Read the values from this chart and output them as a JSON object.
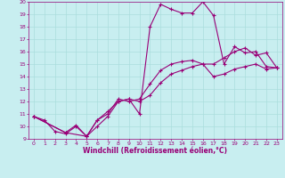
{
  "xlabel": "Windchill (Refroidissement éolien,°C)",
  "background_color": "#c8eef0",
  "grid_color": "#aadddd",
  "line_color": "#990077",
  "xlim": [
    -0.5,
    23.5
  ],
  "ylim": [
    9,
    20
  ],
  "xticks": [
    0,
    1,
    2,
    3,
    4,
    5,
    6,
    7,
    8,
    9,
    10,
    11,
    12,
    13,
    14,
    15,
    16,
    17,
    18,
    19,
    20,
    21,
    22,
    23
  ],
  "yticks": [
    9,
    10,
    11,
    12,
    13,
    14,
    15,
    16,
    17,
    18,
    19,
    20
  ],
  "line1_x": [
    0,
    1,
    2,
    3,
    4,
    5,
    6,
    7,
    8,
    9,
    10,
    11,
    12,
    13,
    14,
    15,
    16,
    17,
    18,
    19,
    20,
    21,
    22,
    23
  ],
  "line1_y": [
    10.8,
    10.5,
    9.6,
    9.4,
    10.0,
    9.2,
    10.0,
    10.8,
    12.0,
    12.2,
    11.0,
    18.0,
    19.8,
    19.4,
    19.1,
    19.1,
    20.0,
    18.9,
    15.0,
    16.4,
    15.9,
    16.0,
    14.8,
    14.7
  ],
  "line2_x": [
    0,
    3,
    4,
    5,
    6,
    7,
    8,
    9,
    10,
    11,
    12,
    13,
    14,
    15,
    16,
    17,
    18,
    19,
    20,
    21,
    22,
    23
  ],
  "line2_y": [
    10.8,
    9.5,
    10.1,
    9.2,
    10.5,
    11.0,
    12.2,
    12.0,
    12.2,
    13.4,
    14.5,
    15.0,
    15.2,
    15.3,
    15.0,
    15.0,
    15.5,
    16.0,
    16.3,
    15.7,
    15.9,
    14.7
  ],
  "line3_x": [
    0,
    3,
    5,
    6,
    7,
    8,
    9,
    10,
    11,
    12,
    13,
    14,
    15,
    16,
    17,
    18,
    19,
    20,
    21,
    22,
    23
  ],
  "line3_y": [
    10.8,
    9.5,
    9.2,
    10.5,
    11.2,
    12.0,
    12.2,
    12.0,
    12.5,
    13.5,
    14.2,
    14.5,
    14.8,
    15.0,
    14.0,
    14.2,
    14.6,
    14.8,
    15.0,
    14.6,
    14.7
  ],
  "tick_fontsize": 4.5,
  "xlabel_fontsize": 5.5,
  "linewidth": 0.8,
  "markersize": 3.0
}
